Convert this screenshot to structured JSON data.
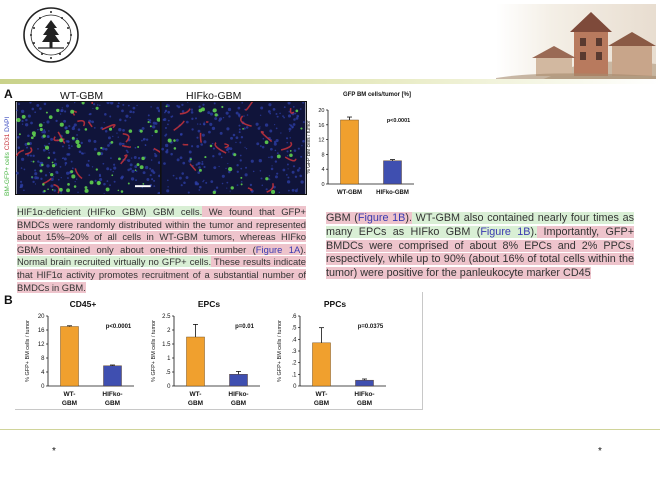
{
  "panel_a": {
    "letter": "A",
    "image_labels": [
      "WT-GBM",
      "HIFko-GBM"
    ],
    "stain_label": {
      "gfp": "BM-GFP+ cells",
      "cd31": "CD31",
      "dapi": "DAPI"
    },
    "colors": {
      "gfp": "#4fb84a",
      "cd31": "#c6323a",
      "dapi": "#3b4bc0"
    }
  },
  "panel_b": {
    "letter": "B"
  },
  "paragraph_left": {
    "part1": "HIF1α-deficient (HIFko GBM) GBM cells.",
    "part2": " We found that GFP+ BMDCs were randomly distributed within the tumor and represented about 15%–20% of all cells in WT-GBM tumors, whereas HIFko GBMs contained only about one-third this number (",
    "link": "Figure 1A",
    "part3": ").",
    "part4": " Normal brain recruited virtually no GFP+ cells.",
    "part5": " These results indicate that HIF1α activity promotes recruitment of a substantial number of BMDCs in GBM."
  },
  "paragraph_right": {
    "part1": "GBM (",
    "link1": "Figure 1B",
    "part2": ").",
    "part3": " WT-GBM also contained nearly four times as many EPCs as HIFko GBM (",
    "link2": "Figure 1B",
    "part4": ").",
    "part5": " Importantly, GFP+ BMDCs were comprised of about 8% EPCs and 2% PPCs, respectively, while up to 90% (about 16% of total cells within the tumor) were positive for the panleukocyte marker CD45"
  },
  "footer": {
    "star_left": "*",
    "star_right": "*"
  },
  "chart_data": [
    {
      "type": "bar",
      "title": "GFP BM cells/tumor [%]",
      "ylabel": "% GFP BM cells / tumor",
      "categories": [
        "WT-GBM",
        "HIFko-GBM"
      ],
      "values": [
        17.3,
        6.3
      ],
      "errors": [
        0.8,
        0.3
      ],
      "colors": [
        "#f0a02e",
        "#3f4fb0"
      ],
      "ylim": [
        0,
        20
      ],
      "yticks": [
        "0",
        "4",
        "8",
        "12",
        "16",
        "20"
      ],
      "annotation": "p<0.0001"
    },
    {
      "type": "bar",
      "title": "CD45+",
      "ylabel": "% GFP+ BM cells / tumor",
      "categories": [
        "WT-GBM",
        "HIFko-GBM"
      ],
      "values": [
        17.0,
        5.8
      ],
      "errors": [
        0.2,
        0.2
      ],
      "colors": [
        "#f0a02e",
        "#3f4fb0"
      ],
      "ylim": [
        0,
        20
      ],
      "yticks": [
        "0",
        "4",
        "8",
        "12",
        "16",
        "20"
      ],
      "annotation": "p<0.0001"
    },
    {
      "type": "bar",
      "title": "EPCs",
      "ylabel": "% GFP+ BM cells / tumor",
      "categories": [
        "WT-GBM",
        "HIFko-GBM"
      ],
      "values": [
        1.75,
        0.42
      ],
      "errors": [
        0.45,
        0.1
      ],
      "colors": [
        "#f0a02e",
        "#3f4fb0"
      ],
      "ylim": [
        0,
        2.5
      ],
      "yticks": [
        "0",
        ".5",
        "1",
        "1.5",
        "2",
        "2.5"
      ],
      "annotation": "p=0.01"
    },
    {
      "type": "bar",
      "title": "PPCs",
      "ylabel": "% GFP+ BM cells / tumor",
      "categories": [
        "WT-GBM",
        "HIFko-GBM"
      ],
      "values": [
        0.37,
        0.05
      ],
      "errors": [
        0.13,
        0.01
      ],
      "colors": [
        "#f0a02e",
        "#3f4fb0"
      ],
      "ylim": [
        0,
        0.6
      ],
      "yticks": [
        "0",
        ".1",
        ".2",
        ".3",
        ".4",
        ".5",
        ".6"
      ],
      "annotation": "p=0.0375"
    }
  ]
}
